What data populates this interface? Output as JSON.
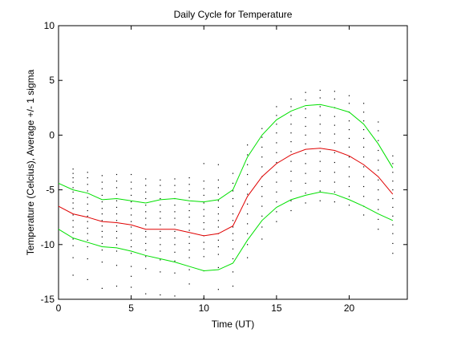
{
  "chart_data": {
    "type": "line",
    "title": "Daily Cycle for Temperature",
    "xlabel": "Time (UT)",
    "ylabel": "Temperature (Celcius), Average +/- 1 sigma",
    "xlim": [
      0,
      24
    ],
    "ylim": [
      -15,
      10
    ],
    "xticks": [
      0,
      5,
      10,
      15,
      20
    ],
    "xtick_labels": [
      "0",
      "5",
      "10",
      "15",
      "20"
    ],
    "yticks": [
      10,
      5,
      0,
      -5,
      -10,
      -15
    ],
    "ytick_labels": [
      "10",
      "5",
      "0",
      "-5",
      "-10",
      "-15"
    ],
    "grid": false,
    "legend": "none",
    "x": [
      0,
      1,
      2,
      3,
      4,
      5,
      6,
      7,
      8,
      9,
      10,
      11,
      12,
      13,
      14,
      15,
      16,
      17,
      18,
      19,
      20,
      21,
      22,
      23
    ],
    "series": [
      {
        "color": "#00e000",
        "values": [
          -4.4,
          -5.0,
          -5.3,
          -5.9,
          -5.8,
          -6.0,
          -6.2,
          -5.9,
          -5.8,
          -6.0,
          -6.1,
          -5.9,
          -5.0,
          -2.0,
          0.0,
          1.4,
          2.2,
          2.7,
          2.8,
          2.5,
          2.1,
          1.0,
          -0.8,
          -3.0
        ]
      },
      {
        "color": "#e00000",
        "values": [
          -6.5,
          -7.2,
          -7.5,
          -7.9,
          -8.0,
          -8.2,
          -8.6,
          -8.6,
          -8.6,
          -8.9,
          -9.2,
          -9.0,
          -8.3,
          -5.6,
          -3.8,
          -2.6,
          -1.8,
          -1.3,
          -1.2,
          -1.4,
          -1.9,
          -2.7,
          -3.8,
          -5.4
        ]
      },
      {
        "color": "#00e000",
        "values": [
          -8.6,
          -9.4,
          -9.8,
          -10.2,
          -10.3,
          -10.6,
          -11.0,
          -11.3,
          -11.6,
          -12.0,
          -12.4,
          -12.3,
          -11.7,
          -9.6,
          -7.8,
          -6.6,
          -5.9,
          -5.5,
          -5.2,
          -5.4,
          -5.9,
          -6.5,
          -7.2,
          -7.8
        ]
      }
    ],
    "scatter_color": "#000000",
    "scatter_points": [
      [
        1,
        -3.1
      ],
      [
        1,
        -3.5
      ],
      [
        1,
        -3.9
      ],
      [
        1,
        -4.3
      ],
      [
        1,
        -4.8
      ],
      [
        1,
        -5.2
      ],
      [
        1,
        -5.8
      ],
      [
        1,
        -6.2
      ],
      [
        1,
        -6.7
      ],
      [
        1,
        -7.3
      ],
      [
        1,
        -7.8
      ],
      [
        1,
        -8.4
      ],
      [
        1,
        -8.9
      ],
      [
        1,
        -9.5
      ],
      [
        1,
        -10.1
      ],
      [
        1,
        -11.2
      ],
      [
        1,
        -12.8
      ],
      [
        2,
        -3.4
      ],
      [
        2,
        -3.9
      ],
      [
        2,
        -4.5
      ],
      [
        2,
        -5.1
      ],
      [
        2,
        -5.7
      ],
      [
        2,
        -6.3
      ],
      [
        2,
        -6.9
      ],
      [
        2,
        -7.4
      ],
      [
        2,
        -7.9
      ],
      [
        2,
        -8.5
      ],
      [
        2,
        -9.0
      ],
      [
        2,
        -9.6
      ],
      [
        2,
        -10.2
      ],
      [
        2,
        -11.3
      ],
      [
        2,
        -13.2
      ],
      [
        3,
        -3.7
      ],
      [
        3,
        -4.3
      ],
      [
        3,
        -4.9
      ],
      [
        3,
        -5.5
      ],
      [
        3,
        -6.1
      ],
      [
        3,
        -6.7
      ],
      [
        3,
        -7.2
      ],
      [
        3,
        -7.8
      ],
      [
        3,
        -8.3
      ],
      [
        3,
        -8.8
      ],
      [
        3,
        -9.3
      ],
      [
        3,
        -9.9
      ],
      [
        3,
        -10.5
      ],
      [
        3,
        -11.6
      ],
      [
        3,
        -14.0
      ],
      [
        4,
        -3.6
      ],
      [
        4,
        -4.2
      ],
      [
        4,
        -4.8
      ],
      [
        4,
        -5.4
      ],
      [
        4,
        -6.0
      ],
      [
        4,
        -6.6
      ],
      [
        4,
        -7.2
      ],
      [
        4,
        -7.8
      ],
      [
        4,
        -8.3
      ],
      [
        4,
        -8.8
      ],
      [
        4,
        -9.4
      ],
      [
        4,
        -10.0
      ],
      [
        4,
        -10.6
      ],
      [
        4,
        -11.9
      ],
      [
        4,
        -13.8
      ],
      [
        5,
        -3.6
      ],
      [
        5,
        -4.3
      ],
      [
        5,
        -4.9
      ],
      [
        5,
        -5.5
      ],
      [
        5,
        -6.1
      ],
      [
        5,
        -6.7
      ],
      [
        5,
        -7.3
      ],
      [
        5,
        -7.9
      ],
      [
        5,
        -8.4
      ],
      [
        5,
        -9.0
      ],
      [
        5,
        -9.6
      ],
      [
        5,
        -10.2
      ],
      [
        5,
        -10.8
      ],
      [
        5,
        -12.0
      ],
      [
        5,
        -12.9
      ],
      [
        5,
        -13.9
      ],
      [
        6,
        -4.0
      ],
      [
        6,
        -4.6
      ],
      [
        6,
        -5.2
      ],
      [
        6,
        -5.8
      ],
      [
        6,
        -6.4
      ],
      [
        6,
        -7.0
      ],
      [
        6,
        -7.6
      ],
      [
        6,
        -8.2
      ],
      [
        6,
        -8.8
      ],
      [
        6,
        -9.3
      ],
      [
        6,
        -9.9
      ],
      [
        6,
        -10.5
      ],
      [
        6,
        -11.1
      ],
      [
        6,
        -12.2
      ],
      [
        6,
        -14.5
      ],
      [
        7,
        -4.1
      ],
      [
        7,
        -4.6
      ],
      [
        7,
        -5.2
      ],
      [
        7,
        -5.8
      ],
      [
        7,
        -6.4
      ],
      [
        7,
        -7.0
      ],
      [
        7,
        -7.6
      ],
      [
        7,
        -8.2
      ],
      [
        7,
        -8.8
      ],
      [
        7,
        -9.4
      ],
      [
        7,
        -10.0
      ],
      [
        7,
        -10.6
      ],
      [
        7,
        -11.4
      ],
      [
        7,
        -12.5
      ],
      [
        7,
        -14.6
      ],
      [
        8,
        -4.0
      ],
      [
        8,
        -4.6
      ],
      [
        8,
        -5.2
      ],
      [
        8,
        -5.8
      ],
      [
        8,
        -6.4
      ],
      [
        8,
        -7.0
      ],
      [
        8,
        -7.6
      ],
      [
        8,
        -8.2
      ],
      [
        8,
        -8.8
      ],
      [
        8,
        -9.4
      ],
      [
        8,
        -10.0
      ],
      [
        8,
        -10.7
      ],
      [
        8,
        -11.5
      ],
      [
        8,
        -12.6
      ],
      [
        8,
        -14.7
      ],
      [
        9,
        -3.9
      ],
      [
        9,
        -4.5
      ],
      [
        9,
        -5.1
      ],
      [
        9,
        -5.7
      ],
      [
        9,
        -6.3
      ],
      [
        9,
        -6.9
      ],
      [
        9,
        -7.5
      ],
      [
        9,
        -8.1
      ],
      [
        9,
        -8.7
      ],
      [
        9,
        -9.3
      ],
      [
        9,
        -9.9
      ],
      [
        9,
        -10.5
      ],
      [
        9,
        -11.2
      ],
      [
        9,
        -12.3
      ],
      [
        9,
        -13.6
      ],
      [
        10,
        -2.6
      ],
      [
        10,
        -4.2
      ],
      [
        10,
        -4.9
      ],
      [
        10,
        -5.5
      ],
      [
        10,
        -6.2
      ],
      [
        10,
        -6.8
      ],
      [
        10,
        -7.4
      ],
      [
        10,
        -8.0
      ],
      [
        10,
        -8.6
      ],
      [
        10,
        -9.2
      ],
      [
        10,
        -9.8
      ],
      [
        10,
        -10.4
      ],
      [
        10,
        -11.1
      ],
      [
        10,
        -12.4
      ],
      [
        10,
        -14.9
      ],
      [
        11,
        -2.7
      ],
      [
        11,
        -4.1
      ],
      [
        11,
        -4.8
      ],
      [
        11,
        -5.4
      ],
      [
        11,
        -6.0
      ],
      [
        11,
        -6.6
      ],
      [
        11,
        -7.2
      ],
      [
        11,
        -7.8
      ],
      [
        11,
        -8.4
      ],
      [
        11,
        -9.0
      ],
      [
        11,
        -9.6
      ],
      [
        11,
        -10.2
      ],
      [
        11,
        -10.9
      ],
      [
        11,
        -12.1
      ],
      [
        11,
        -14.1
      ],
      [
        12,
        -3.5
      ],
      [
        12,
        -4.4
      ],
      [
        12,
        -5.1
      ],
      [
        12,
        -5.8
      ],
      [
        12,
        -6.5
      ],
      [
        12,
        -7.2
      ],
      [
        12,
        -7.8
      ],
      [
        12,
        -8.4
      ],
      [
        12,
        -9.0
      ],
      [
        12,
        -9.6
      ],
      [
        12,
        -10.4
      ],
      [
        12,
        -11.3
      ],
      [
        12,
        -12.5
      ],
      [
        12,
        -13.8
      ],
      [
        13,
        -0.9
      ],
      [
        13,
        -1.8
      ],
      [
        13,
        -2.7
      ],
      [
        13,
        -3.6
      ],
      [
        13,
        -4.5
      ],
      [
        13,
        -5.4
      ],
      [
        13,
        -6.3
      ],
      [
        13,
        -7.2
      ],
      [
        13,
        -8.1
      ],
      [
        13,
        -9.0
      ],
      [
        13,
        -10.0
      ],
      [
        13,
        -11.2
      ],
      [
        14,
        0.6
      ],
      [
        14,
        -0.2
      ],
      [
        14,
        -1.1
      ],
      [
        14,
        -2.0
      ],
      [
        14,
        -2.9
      ],
      [
        14,
        -3.8
      ],
      [
        14,
        -4.7
      ],
      [
        14,
        -5.6
      ],
      [
        14,
        -6.5
      ],
      [
        14,
        -7.4
      ],
      [
        14,
        -8.4
      ],
      [
        14,
        -9.5
      ],
      [
        15,
        2.6
      ],
      [
        15,
        1.8
      ],
      [
        15,
        1.0
      ],
      [
        15,
        0.2
      ],
      [
        15,
        -0.7
      ],
      [
        15,
        -1.6
      ],
      [
        15,
        -2.5
      ],
      [
        15,
        -3.4
      ],
      [
        15,
        -4.3
      ],
      [
        15,
        -5.2
      ],
      [
        15,
        -6.1
      ],
      [
        15,
        -7.0
      ],
      [
        15,
        -7.9
      ],
      [
        16,
        3.3
      ],
      [
        16,
        2.6
      ],
      [
        16,
        1.8
      ],
      [
        16,
        1.0
      ],
      [
        16,
        0.2
      ],
      [
        16,
        -0.6
      ],
      [
        16,
        -1.5
      ],
      [
        16,
        -2.4
      ],
      [
        16,
        -3.3
      ],
      [
        16,
        -4.2
      ],
      [
        16,
        -5.1
      ],
      [
        16,
        -6.0
      ],
      [
        16,
        -6.9
      ],
      [
        17,
        3.9
      ],
      [
        17,
        3.2
      ],
      [
        17,
        2.4
      ],
      [
        17,
        1.6
      ],
      [
        17,
        0.8
      ],
      [
        17,
        0.0
      ],
      [
        17,
        -0.8
      ],
      [
        17,
        -1.7
      ],
      [
        17,
        -2.6
      ],
      [
        17,
        -3.5
      ],
      [
        17,
        -4.4
      ],
      [
        17,
        -5.3
      ],
      [
        17,
        -6.2
      ],
      [
        18,
        4.1
      ],
      [
        18,
        3.4
      ],
      [
        18,
        2.6
      ],
      [
        18,
        1.8
      ],
      [
        18,
        1.0
      ],
      [
        18,
        0.2
      ],
      [
        18,
        -0.6
      ],
      [
        18,
        -1.5
      ],
      [
        18,
        -2.4
      ],
      [
        18,
        -3.3
      ],
      [
        18,
        -4.2
      ],
      [
        18,
        -5.1
      ],
      [
        18,
        -6.0
      ],
      [
        19,
        4.0
      ],
      [
        19,
        3.3
      ],
      [
        19,
        2.5
      ],
      [
        19,
        1.7
      ],
      [
        19,
        0.9
      ],
      [
        19,
        0.1
      ],
      [
        19,
        -0.7
      ],
      [
        19,
        -1.6
      ],
      [
        19,
        -2.5
      ],
      [
        19,
        -3.4
      ],
      [
        19,
        -4.3
      ],
      [
        19,
        -5.2
      ],
      [
        19,
        -6.1
      ],
      [
        20,
        3.6
      ],
      [
        20,
        2.9
      ],
      [
        20,
        2.1
      ],
      [
        20,
        1.3
      ],
      [
        20,
        0.5
      ],
      [
        20,
        -0.3
      ],
      [
        20,
        -1.1
      ],
      [
        20,
        -2.0
      ],
      [
        20,
        -2.9
      ],
      [
        20,
        -3.8
      ],
      [
        20,
        -4.7
      ],
      [
        20,
        -5.6
      ],
      [
        20,
        -6.4
      ],
      [
        21,
        2.9
      ],
      [
        21,
        2.1
      ],
      [
        21,
        1.3
      ],
      [
        21,
        0.5
      ],
      [
        21,
        -0.3
      ],
      [
        21,
        -1.1
      ],
      [
        21,
        -2.0
      ],
      [
        21,
        -2.9
      ],
      [
        21,
        -3.8
      ],
      [
        21,
        -4.7
      ],
      [
        21,
        -5.6
      ],
      [
        21,
        -6.5
      ],
      [
        21,
        -7.3
      ],
      [
        22,
        1.2
      ],
      [
        22,
        0.4
      ],
      [
        22,
        -0.5
      ],
      [
        22,
        -1.4
      ],
      [
        22,
        -2.3
      ],
      [
        22,
        -3.2
      ],
      [
        22,
        -4.1
      ],
      [
        22,
        -5.0
      ],
      [
        22,
        -5.9
      ],
      [
        22,
        -6.8
      ],
      [
        22,
        -7.7
      ],
      [
        22,
        -8.6
      ],
      [
        23,
        -1.9
      ],
      [
        23,
        -2.6
      ],
      [
        23,
        -3.4
      ],
      [
        23,
        -4.2
      ],
      [
        23,
        -5.0
      ],
      [
        23,
        -5.8
      ],
      [
        23,
        -6.6
      ],
      [
        23,
        -7.4
      ],
      [
        23,
        -8.2
      ],
      [
        23,
        -9.0
      ],
      [
        23,
        -9.9
      ],
      [
        23,
        -10.8
      ]
    ]
  }
}
